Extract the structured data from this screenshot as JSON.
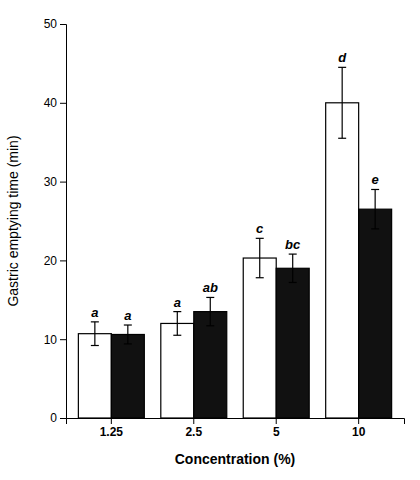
{
  "chart_data": {
    "type": "bar",
    "categories": [
      "1.25",
      "2.5",
      "5",
      "10"
    ],
    "series": [
      {
        "color": "#ffffff",
        "values": [
          10.7,
          12.0,
          20.3,
          40.0
        ],
        "errors": [
          1.5,
          1.5,
          2.5,
          4.5
        ],
        "labels": [
          "a",
          "a",
          "c",
          "d"
        ]
      },
      {
        "color": "#111111",
        "values": [
          10.6,
          13.5,
          19.0,
          26.5
        ],
        "errors": [
          1.2,
          1.8,
          1.8,
          2.5
        ],
        "labels": [
          "a",
          "ab",
          "bc",
          "e"
        ]
      }
    ],
    "xlabel": "Concentration (%)",
    "ylabel": "Gastric emptying time (min)",
    "ylim": [
      0,
      50
    ],
    "yticks": [
      0,
      10,
      20,
      30,
      40,
      50
    ],
    "grid": false
  }
}
